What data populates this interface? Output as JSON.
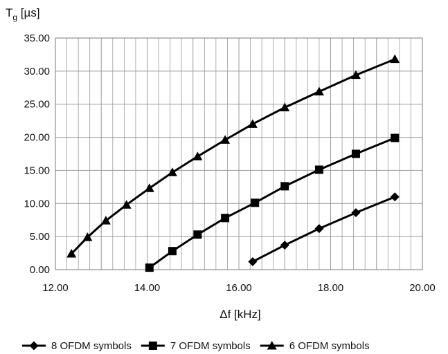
{
  "chart_data": {
    "type": "line",
    "ylabel_main": "T",
    "ylabel_sub": "g",
    "ylabel_unit": " [µs]",
    "xlabel": "Δf [kHz]",
    "xlim": [
      12,
      20
    ],
    "ylim": [
      0,
      35
    ],
    "x_ticks": [
      12,
      13,
      14,
      15,
      16,
      17,
      18,
      19,
      20
    ],
    "x_tick_labels": [
      "12.00",
      "",
      "14.00",
      "",
      "16.00",
      "",
      "18.00",
      "",
      "20.00"
    ],
    "y_ticks": [
      0,
      5,
      10,
      15,
      20,
      25,
      30,
      35
    ],
    "y_tick_labels": [
      "0.00",
      "5.00",
      "10.00",
      "15.00",
      "20.00",
      "25.00",
      "30.00",
      "35.00"
    ],
    "grid": true,
    "legend_position": "bottom",
    "series": [
      {
        "name": "8 OFDM symbols",
        "marker": "diamond",
        "x": [
          16.3,
          17.0,
          17.75,
          18.55,
          19.4
        ],
        "y": [
          1.2,
          3.7,
          6.2,
          8.6,
          11.0
        ]
      },
      {
        "name": "7 OFDM symbols",
        "marker": "square",
        "x": [
          14.05,
          14.55,
          15.1,
          15.7,
          16.35,
          17.0,
          17.75,
          18.55,
          19.4
        ],
        "y": [
          0.3,
          2.8,
          5.3,
          7.8,
          10.1,
          12.6,
          15.1,
          17.5,
          19.9
        ]
      },
      {
        "name": "6 OFDM symbols",
        "marker": "triangle",
        "x": [
          12.35,
          12.7,
          13.1,
          13.55,
          14.05,
          14.55,
          15.1,
          15.7,
          16.3,
          17.0,
          17.75,
          18.55,
          19.4
        ],
        "y": [
          2.4,
          4.9,
          7.4,
          9.8,
          12.3,
          14.7,
          17.1,
          19.6,
          22.0,
          24.5,
          26.9,
          29.4,
          31.8
        ]
      }
    ],
    "colors": {
      "line": "#000000",
      "grid": "#9a9a9a",
      "axis": "#7a7a7a"
    }
  }
}
